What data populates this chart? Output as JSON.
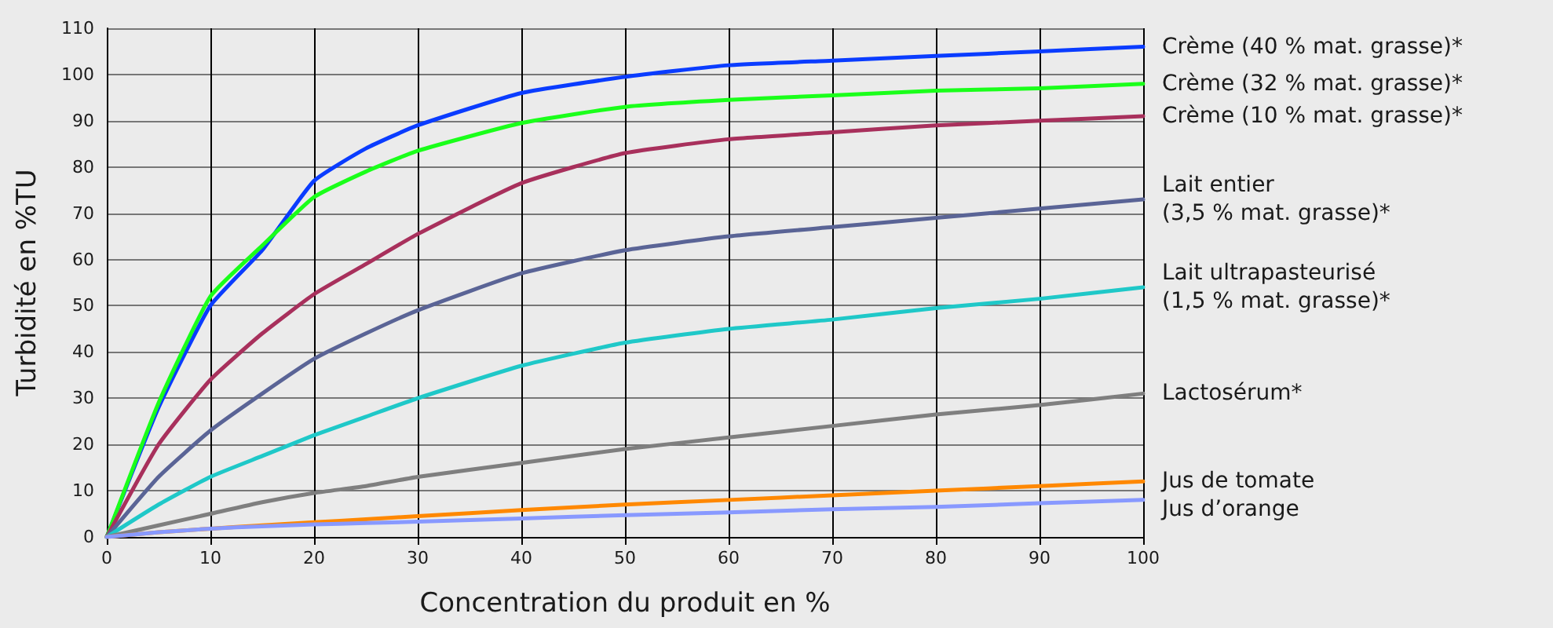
{
  "chart_data": {
    "type": "line",
    "xlabel": "Concentration du produit en %",
    "ylabel": "Turbidité en %TU",
    "x": [
      0,
      5,
      10,
      15,
      20,
      25,
      30,
      40,
      50,
      60,
      70,
      80,
      90,
      100
    ],
    "xlim": [
      0,
      100
    ],
    "xticks": [
      0,
      10,
      20,
      30,
      40,
      50,
      60,
      70,
      80,
      90,
      100
    ],
    "ylim": [
      0,
      110
    ],
    "yticks": [
      0,
      10,
      20,
      30,
      40,
      50,
      60,
      70,
      80,
      90,
      100,
      110
    ],
    "grid": true,
    "legend": false,
    "marker": "none",
    "line_style": "solid",
    "series": [
      {
        "name": "Crème (40 % mat. grasse)*",
        "color": "#0a3cff",
        "values": [
          0,
          28,
          50,
          62,
          77,
          84,
          89,
          96,
          99.5,
          102,
          103,
          104,
          105,
          106
        ]
      },
      {
        "name": "Crème (32 % mat. grasse)*",
        "color": "#1aff1a",
        "values": [
          0,
          29,
          52,
          63,
          73.5,
          79,
          83.5,
          89.5,
          93,
          94.5,
          95.5,
          96.5,
          97,
          98
        ]
      },
      {
        "name": "Crème (10 % mat. grasse)*",
        "color": "#a8305c",
        "values": [
          0,
          20,
          34,
          44,
          52.5,
          59,
          65.5,
          76.5,
          83,
          86,
          87.5,
          89,
          90,
          91
        ]
      },
      {
        "name": "Lait entier\n(3,5 % mat. grasse)*",
        "color": "#5a6496",
        "values": [
          0,
          13,
          23,
          31,
          38.5,
          44,
          49,
          57,
          62,
          65,
          67,
          69,
          71,
          73
        ]
      },
      {
        "name": "Lait ultrapasteurisé\n(1,5 % mat. grasse)*",
        "color": "#1fc8c8",
        "values": [
          0,
          7,
          13,
          17.5,
          22,
          26,
          30,
          37,
          42,
          45,
          47,
          49.5,
          51.5,
          54
        ]
      },
      {
        "name": "Lactosérum*",
        "color": "#7f7f7f",
        "values": [
          0,
          2.5,
          5,
          7.5,
          9.5,
          11,
          13,
          16,
          19,
          21.5,
          24,
          26.5,
          28.5,
          31
        ]
      },
      {
        "name": "Jus de tomate",
        "color": "#ff8800",
        "values": [
          0,
          1,
          1.8,
          2.5,
          3.2,
          3.8,
          4.5,
          5.8,
          7,
          8,
          9,
          10,
          11,
          12
        ]
      },
      {
        "name": "Jus d’orange",
        "color": "#8899ff",
        "values": [
          0,
          1,
          1.8,
          2.3,
          2.7,
          3,
          3.3,
          4,
          4.7,
          5.3,
          6,
          6.5,
          7.3,
          8
        ]
      }
    ]
  }
}
